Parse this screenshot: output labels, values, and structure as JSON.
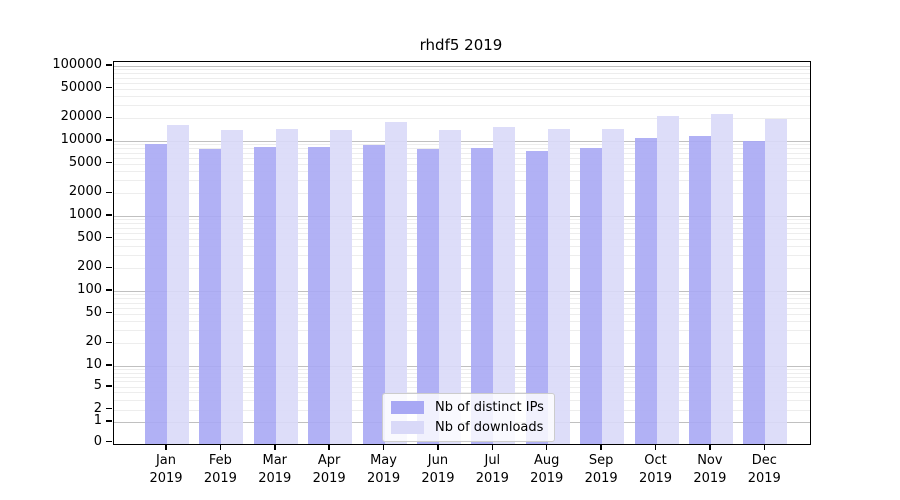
{
  "title": "rhdf5 2019",
  "legend": {
    "items": [
      {
        "label": "Nb of distinct IPs",
        "series_key": "ips"
      },
      {
        "label": "Nb of downloads",
        "series_key": "downloads"
      }
    ]
  },
  "chart_data": {
    "type": "bar",
    "title": "rhdf5 2019",
    "categories": [
      "Jan",
      "Feb",
      "Mar",
      "Apr",
      "May",
      "Jun",
      "Jul",
      "Aug",
      "Sep",
      "Oct",
      "Nov",
      "Dec"
    ],
    "category_year": "2019",
    "series": [
      {
        "name": "Nb of distinct IPs",
        "color": "#a8a8f4",
        "values": [
          8800,
          7500,
          7900,
          7900,
          8500,
          7400,
          7700,
          7000,
          7800,
          10600,
          11000,
          9500
        ]
      },
      {
        "name": "Nb of downloads",
        "color": "#d9d9f8",
        "values": [
          15400,
          13300,
          13900,
          13600,
          17200,
          13300,
          14500,
          13900,
          13900,
          20900,
          22000,
          18800
        ]
      }
    ],
    "yscale": "symlog",
    "yticks": [
      0,
      1,
      2,
      5,
      10,
      20,
      50,
      100,
      200,
      500,
      1000,
      2000,
      5000,
      10000,
      20000,
      50000,
      100000
    ],
    "ylim": [
      0,
      140000
    ],
    "xlabel": "",
    "ylabel": "",
    "grid": true,
    "legend_position": "lower center"
  }
}
